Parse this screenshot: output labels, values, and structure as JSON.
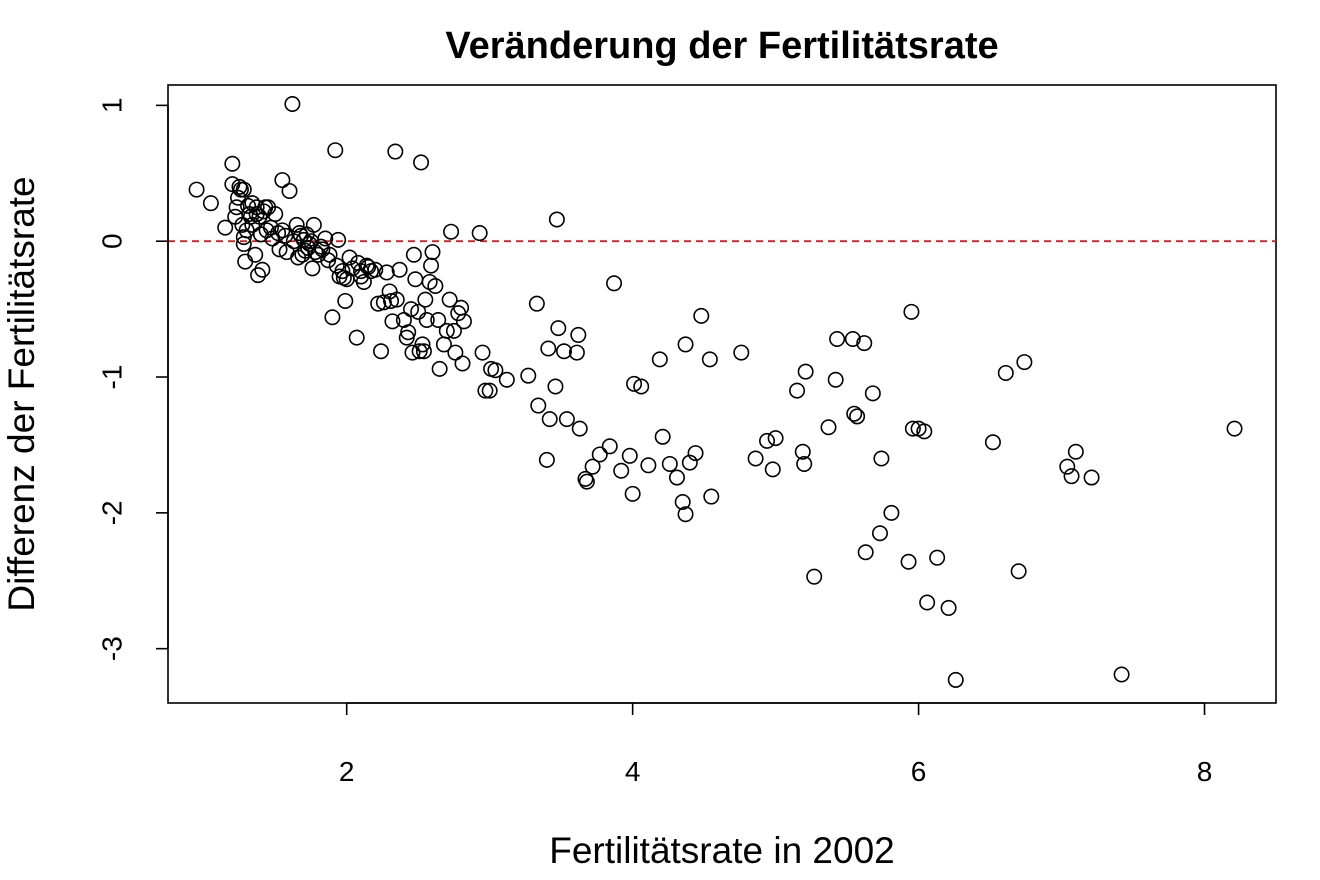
{
  "chart_data": {
    "type": "scatter",
    "title": "Veränderung der Fertilitätsrate",
    "xlabel": "Fertilitätsrate in 2002",
    "ylabel": "Differenz der Fertilitätsrate",
    "xlim": [
      0.75,
      8.5
    ],
    "ylim": [
      -3.4,
      1.15
    ],
    "xticks": [
      2,
      4,
      6,
      8
    ],
    "yticks": [
      1,
      0,
      -1,
      -2,
      -3
    ],
    "grid": false,
    "reference_line": {
      "y": 0,
      "color": "#e31a1c",
      "style": "dashed"
    },
    "point_style": "open-circle",
    "points": [
      [
        0.95,
        0.38
      ],
      [
        1.05,
        0.28
      ],
      [
        1.15,
        0.1
      ],
      [
        1.2,
        0.57
      ],
      [
        1.2,
        0.42
      ],
      [
        1.22,
        0.18
      ],
      [
        1.23,
        0.25
      ],
      [
        1.24,
        0.32
      ],
      [
        1.25,
        0.4
      ],
      [
        1.26,
        0.38
      ],
      [
        1.27,
        0.12
      ],
      [
        1.28,
        0.38
      ],
      [
        1.28,
        0.03
      ],
      [
        1.28,
        -0.02
      ],
      [
        1.29,
        -0.15
      ],
      [
        1.3,
        0.08
      ],
      [
        1.31,
        0.26
      ],
      [
        1.32,
        0.2
      ],
      [
        1.33,
        0.18
      ],
      [
        1.34,
        0.28
      ],
      [
        1.34,
        0.12
      ],
      [
        1.36,
        -0.1
      ],
      [
        1.37,
        0.25
      ],
      [
        1.37,
        0.2
      ],
      [
        1.38,
        -0.25
      ],
      [
        1.39,
        0.18
      ],
      [
        1.4,
        0.05
      ],
      [
        1.41,
        -0.21
      ],
      [
        1.42,
        0.22
      ],
      [
        1.43,
        0.25
      ],
      [
        1.44,
        0.08
      ],
      [
        1.45,
        0.25
      ],
      [
        1.47,
        0.1
      ],
      [
        1.48,
        0.02
      ],
      [
        1.5,
        0.2
      ],
      [
        1.52,
        0.06
      ],
      [
        1.53,
        -0.06
      ],
      [
        1.55,
        0.08
      ],
      [
        1.55,
        0.45
      ],
      [
        1.57,
        0.04
      ],
      [
        1.58,
        -0.08
      ],
      [
        1.6,
        0.37
      ],
      [
        1.62,
        1.01
      ],
      [
        1.63,
        0.0
      ],
      [
        1.65,
        0.12
      ],
      [
        1.66,
        -0.12
      ],
      [
        1.67,
        0.06
      ],
      [
        1.68,
        0.04
      ],
      [
        1.69,
        -0.1
      ],
      [
        1.7,
        0.01
      ],
      [
        1.71,
        -0.07
      ],
      [
        1.72,
        0.05
      ],
      [
        1.73,
        -0.05
      ],
      [
        1.74,
        -0.02
      ],
      [
        1.75,
        0.0
      ],
      [
        1.76,
        -0.2
      ],
      [
        1.77,
        0.12
      ],
      [
        1.78,
        -0.08
      ],
      [
        1.8,
        -0.1
      ],
      [
        1.82,
        -0.04
      ],
      [
        1.83,
        -0.06
      ],
      [
        1.85,
        0.02
      ],
      [
        1.87,
        -0.14
      ],
      [
        1.88,
        -0.1
      ],
      [
        1.9,
        -0.56
      ],
      [
        1.92,
        0.67
      ],
      [
        1.93,
        -0.18
      ],
      [
        1.94,
        0.01
      ],
      [
        1.95,
        -0.26
      ],
      [
        1.97,
        -0.22
      ],
      [
        1.98,
        -0.27
      ],
      [
        1.99,
        -0.44
      ],
      [
        2.0,
        -0.28
      ],
      [
        2.02,
        -0.12
      ],
      [
        2.04,
        -0.2
      ],
      [
        2.07,
        -0.71
      ],
      [
        2.08,
        -0.16
      ],
      [
        2.1,
        -0.26
      ],
      [
        2.1,
        -0.22
      ],
      [
        2.12,
        -0.3
      ],
      [
        2.14,
        -0.18
      ],
      [
        2.15,
        -0.19
      ],
      [
        2.17,
        -0.22
      ],
      [
        2.2,
        -0.21
      ],
      [
        2.22,
        -0.46
      ],
      [
        2.24,
        -0.81
      ],
      [
        2.26,
        -0.45
      ],
      [
        2.28,
        -0.23
      ],
      [
        2.3,
        -0.37
      ],
      [
        2.31,
        -0.44
      ],
      [
        2.32,
        -0.59
      ],
      [
        2.34,
        0.66
      ],
      [
        2.35,
        -0.43
      ],
      [
        2.37,
        -0.21
      ],
      [
        2.4,
        -0.58
      ],
      [
        2.42,
        -0.71
      ],
      [
        2.43,
        -0.67
      ],
      [
        2.45,
        -0.5
      ],
      [
        2.46,
        -0.82
      ],
      [
        2.47,
        -0.1
      ],
      [
        2.48,
        -0.28
      ],
      [
        2.5,
        -0.52
      ],
      [
        2.51,
        -0.81
      ],
      [
        2.52,
        0.58
      ],
      [
        2.53,
        -0.76
      ],
      [
        2.54,
        -0.81
      ],
      [
        2.55,
        -0.43
      ],
      [
        2.56,
        -0.58
      ],
      [
        2.58,
        -0.3
      ],
      [
        2.59,
        -0.18
      ],
      [
        2.6,
        -0.08
      ],
      [
        2.62,
        -0.33
      ],
      [
        2.64,
        -0.58
      ],
      [
        2.65,
        -0.94
      ],
      [
        2.68,
        -0.76
      ],
      [
        2.7,
        -0.66
      ],
      [
        2.72,
        -0.43
      ],
      [
        2.73,
        0.07
      ],
      [
        2.75,
        -0.66
      ],
      [
        2.76,
        -0.82
      ],
      [
        2.78,
        -0.53
      ],
      [
        2.8,
        -0.49
      ],
      [
        2.81,
        -0.9
      ],
      [
        2.82,
        -0.59
      ],
      [
        2.93,
        0.06
      ],
      [
        2.95,
        -0.82
      ],
      [
        2.97,
        -1.1
      ],
      [
        3.0,
        -1.1
      ],
      [
        3.01,
        -0.94
      ],
      [
        3.04,
        -0.95
      ],
      [
        3.12,
        -1.02
      ],
      [
        3.27,
        -0.99
      ],
      [
        3.33,
        -0.46
      ],
      [
        3.34,
        -1.21
      ],
      [
        3.4,
        -1.61
      ],
      [
        3.41,
        -0.79
      ],
      [
        3.42,
        -1.31
      ],
      [
        3.46,
        -1.07
      ],
      [
        3.47,
        0.16
      ],
      [
        3.48,
        -0.64
      ],
      [
        3.52,
        -0.81
      ],
      [
        3.54,
        -1.31
      ],
      [
        3.61,
        -0.82
      ],
      [
        3.62,
        -0.69
      ],
      [
        3.63,
        -1.38
      ],
      [
        3.67,
        -1.75
      ],
      [
        3.68,
        -1.77
      ],
      [
        3.72,
        -1.66
      ],
      [
        3.77,
        -1.57
      ],
      [
        3.84,
        -1.51
      ],
      [
        3.87,
        -0.31
      ],
      [
        3.92,
        -1.69
      ],
      [
        3.98,
        -1.58
      ],
      [
        4.0,
        -1.86
      ],
      [
        4.01,
        -1.05
      ],
      [
        4.06,
        -1.07
      ],
      [
        4.11,
        -1.65
      ],
      [
        4.19,
        -0.87
      ],
      [
        4.21,
        -1.44
      ],
      [
        4.26,
        -1.64
      ],
      [
        4.31,
        -1.74
      ],
      [
        4.35,
        -1.92
      ],
      [
        4.37,
        -2.01
      ],
      [
        4.37,
        -0.76
      ],
      [
        4.4,
        -1.63
      ],
      [
        4.44,
        -1.56
      ],
      [
        4.48,
        -0.55
      ],
      [
        4.54,
        -0.87
      ],
      [
        4.55,
        -1.88
      ],
      [
        4.76,
        -0.82
      ],
      [
        4.86,
        -1.6
      ],
      [
        4.94,
        -1.47
      ],
      [
        4.98,
        -1.68
      ],
      [
        5.0,
        -1.45
      ],
      [
        5.15,
        -1.1
      ],
      [
        5.19,
        -1.55
      ],
      [
        5.2,
        -1.64
      ],
      [
        5.21,
        -0.96
      ],
      [
        5.27,
        -2.47
      ],
      [
        5.37,
        -1.37
      ],
      [
        5.42,
        -1.02
      ],
      [
        5.43,
        -0.72
      ],
      [
        5.54,
        -0.72
      ],
      [
        5.55,
        -1.27
      ],
      [
        5.57,
        -1.29
      ],
      [
        5.62,
        -0.75
      ],
      [
        5.63,
        -2.29
      ],
      [
        5.68,
        -1.12
      ],
      [
        5.73,
        -2.15
      ],
      [
        5.74,
        -1.6
      ],
      [
        5.81,
        -2.0
      ],
      [
        5.93,
        -2.36
      ],
      [
        5.95,
        -0.52
      ],
      [
        5.96,
        -1.38
      ],
      [
        6.0,
        -1.38
      ],
      [
        6.04,
        -1.4
      ],
      [
        6.06,
        -2.66
      ],
      [
        6.13,
        -2.33
      ],
      [
        6.21,
        -2.7
      ],
      [
        6.26,
        -3.23
      ],
      [
        6.52,
        -1.48
      ],
      [
        6.61,
        -0.97
      ],
      [
        6.7,
        -2.43
      ],
      [
        6.74,
        -0.89
      ],
      [
        7.04,
        -1.66
      ],
      [
        7.07,
        -1.73
      ],
      [
        7.1,
        -1.55
      ],
      [
        7.21,
        -1.74
      ],
      [
        7.42,
        -3.19
      ],
      [
        8.21,
        -1.38
      ]
    ]
  }
}
